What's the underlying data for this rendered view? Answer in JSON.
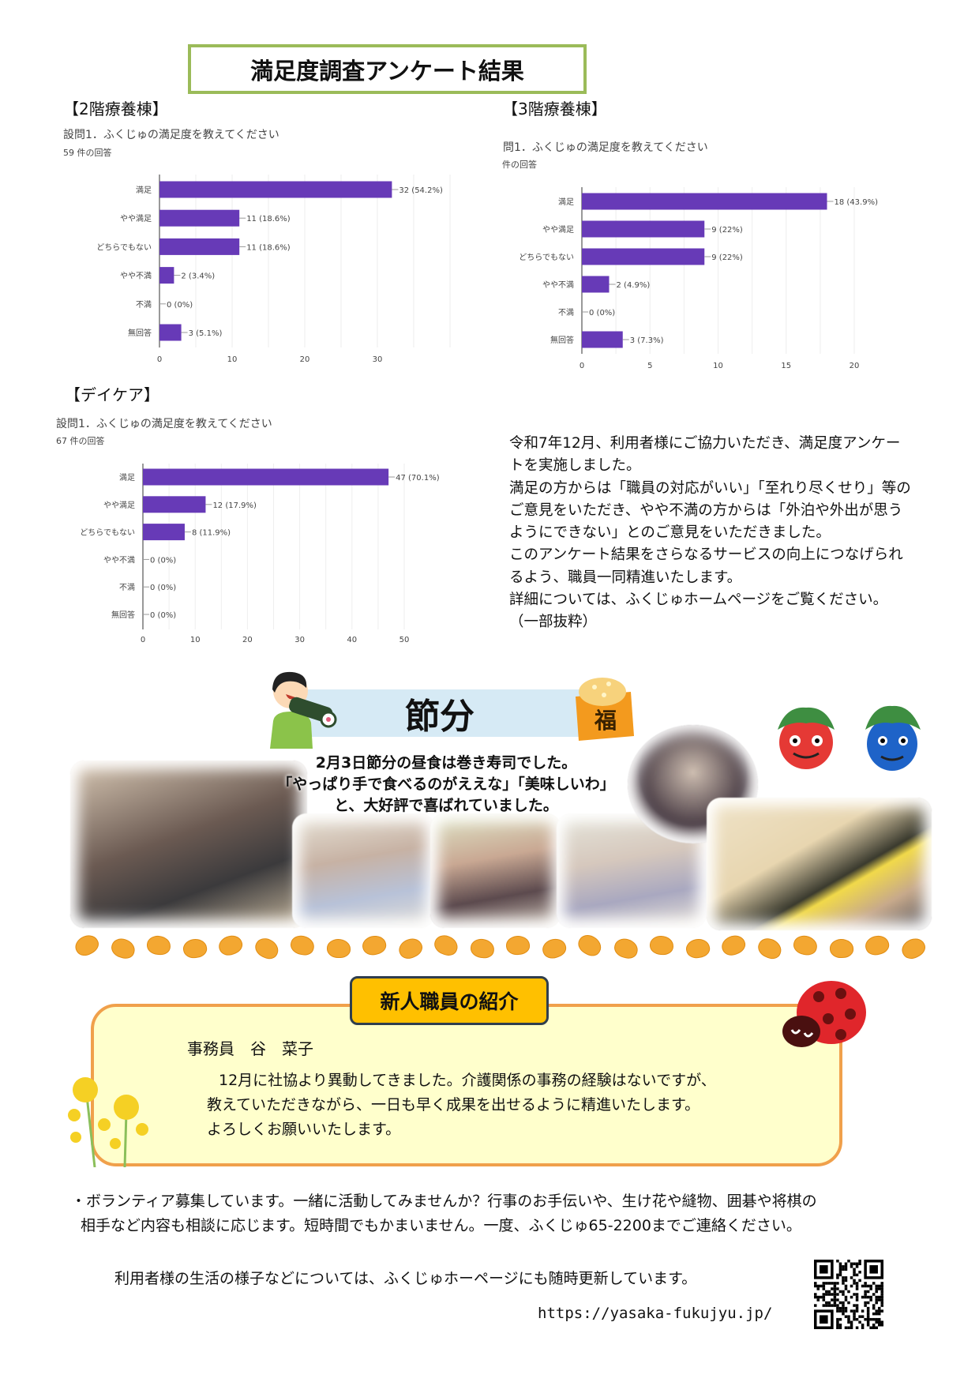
{
  "header": {
    "title": "満足度調査アンケート結果"
  },
  "sections": {
    "floor2": "【2階療養棟】",
    "floor3": "【3階療養棟】",
    "daycare": "【デイケア】"
  },
  "chart_data": [
    {
      "type": "bar",
      "orientation": "horizontal",
      "title": "設問1．ふくじゅの満足度を教えてください",
      "subtitle": "59 件の回答",
      "categories": [
        "満足",
        "やや満足",
        "どちらでもない",
        "やや不満",
        "不満",
        "無回答"
      ],
      "values": [
        32,
        11,
        11,
        2,
        0,
        3
      ],
      "labels": [
        "32 (54.2%)",
        "11 (18.6%)",
        "11 (18.6%)",
        "2 (3.4%)",
        "0 (0%)",
        "3 (5.1%)"
      ],
      "xticks": [
        0,
        10,
        20,
        30
      ],
      "xlim": [
        0,
        40
      ],
      "grid": true,
      "color": "#673ab7"
    },
    {
      "type": "bar",
      "orientation": "horizontal",
      "title": "問1．ふくじゅの満足度を教えてください",
      "subtitle": "件の回答",
      "categories": [
        "満足",
        "やや満足",
        "どちらでもない",
        "やや不満",
        "不満",
        "無回答"
      ],
      "values": [
        18,
        9,
        9,
        2,
        0,
        3
      ],
      "labels": [
        "18 (43.9%)",
        "9 (22%)",
        "9 (22%)",
        "2 (4.9%)",
        "0 (0%)",
        "3 (7.3%)"
      ],
      "xticks": [
        0,
        5,
        10,
        15,
        20
      ],
      "xlim": [
        0,
        20
      ],
      "grid": true,
      "color": "#673ab7"
    },
    {
      "type": "bar",
      "orientation": "horizontal",
      "title": "設問1．ふくじゅの満足度を教えてください",
      "subtitle": "67 件の回答",
      "categories": [
        "満足",
        "やや満足",
        "どちらでもない",
        "やや不満",
        "不満",
        "無回答"
      ],
      "values": [
        47,
        12,
        8,
        0,
        0,
        0
      ],
      "labels": [
        "47 (70.1%)",
        "12 (17.9%)",
        "8 (11.9%)",
        "0 (0%)",
        "0 (0%)",
        "0 (0%)"
      ],
      "xticks": [
        0,
        10,
        20,
        30,
        40,
        50
      ],
      "xlim": [
        0,
        50
      ],
      "grid": true,
      "color": "#673ab7"
    }
  ],
  "summary": {
    "lines": [
      "令和7年12月、利用者様にご協力いただき、満足度アンケー",
      "トを実施しました。",
      "満足の方からは「職員の対応がいい」「至れり尽くせり」等の",
      "ご意見をいただき、やや不満の方からは「外泊や外出が思う",
      "ようにできない」とのご意見をいただきました。",
      "このアンケート結果をさらなるサービスの向上につなげられ",
      "るよう、職員一同精進いたします。",
      "詳細については、ふくじゅホームページをご覧ください。",
      "（一部抜粋）"
    ]
  },
  "setsubun": {
    "title": "節分",
    "fuku": "福",
    "caption": [
      "2月3日節分の昼食は巻き寿司でした。",
      "「やっぱり手で食べるのがええな」「美味しいわ」",
      "と、大好評で喜ばれていました。"
    ]
  },
  "staff": {
    "badge": "新人職員の紹介",
    "name": "事務員　谷　菜子",
    "body": [
      "12月に社協より異動してきました。介護関係の事務の経験はないですが、",
      "教えていただきながら、一日も早く成果を出せるように精進いたします。",
      "よろしくお願いいたします。"
    ]
  },
  "volunteer": {
    "lines": [
      "・ボランティア募集しています。一緒に活動してみませんか？行事のお手伝いや、生け花や縫物、囲碁や将棋の",
      "相手など内容も相談に応じます。短時間でもかまいません。一度、ふくじゅ65-2200までご連絡ください。"
    ]
  },
  "footer": {
    "note": "利用者様の生活の様子などについては、ふくじゅホーページにも随時更新しています。",
    "url": "https://yasaka-fukujyu.jp/"
  }
}
